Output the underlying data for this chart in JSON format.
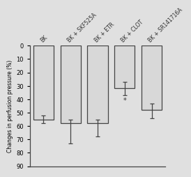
{
  "categories": [
    "BK",
    "BK + SKF525A",
    "BK + ETR",
    "BK + CLOT",
    "BK + SR141716A"
  ],
  "values": [
    -55,
    -58,
    -58,
    -32,
    -48
  ],
  "errors_low": [
    3,
    15,
    10,
    5,
    6
  ],
  "errors_high": [
    3,
    3,
    3,
    5,
    5
  ],
  "bar_color": "#d8d8d8",
  "bar_edgecolor": "#444444",
  "star_annotation": {
    "bar_index": 3,
    "value": -41,
    "text": "*"
  },
  "ylabel": "Changes in perfusion pressure (%)",
  "ylim": [
    -90,
    0
  ],
  "yticks": [
    0,
    -10,
    -20,
    -30,
    -40,
    -50,
    -60,
    -70,
    -80,
    -90
  ],
  "yticklabels": [
    "0",
    "10",
    "20",
    "30",
    "40",
    "50",
    "60",
    "70",
    "80",
    "90"
  ],
  "background_color": "#e0e0e0",
  "axes_facecolor": "#e0e0e0",
  "label_fontsize": 5.5,
  "tick_fontsize": 6,
  "bar_width": 0.75,
  "linewidth": 0.9,
  "label_rotation": 45
}
